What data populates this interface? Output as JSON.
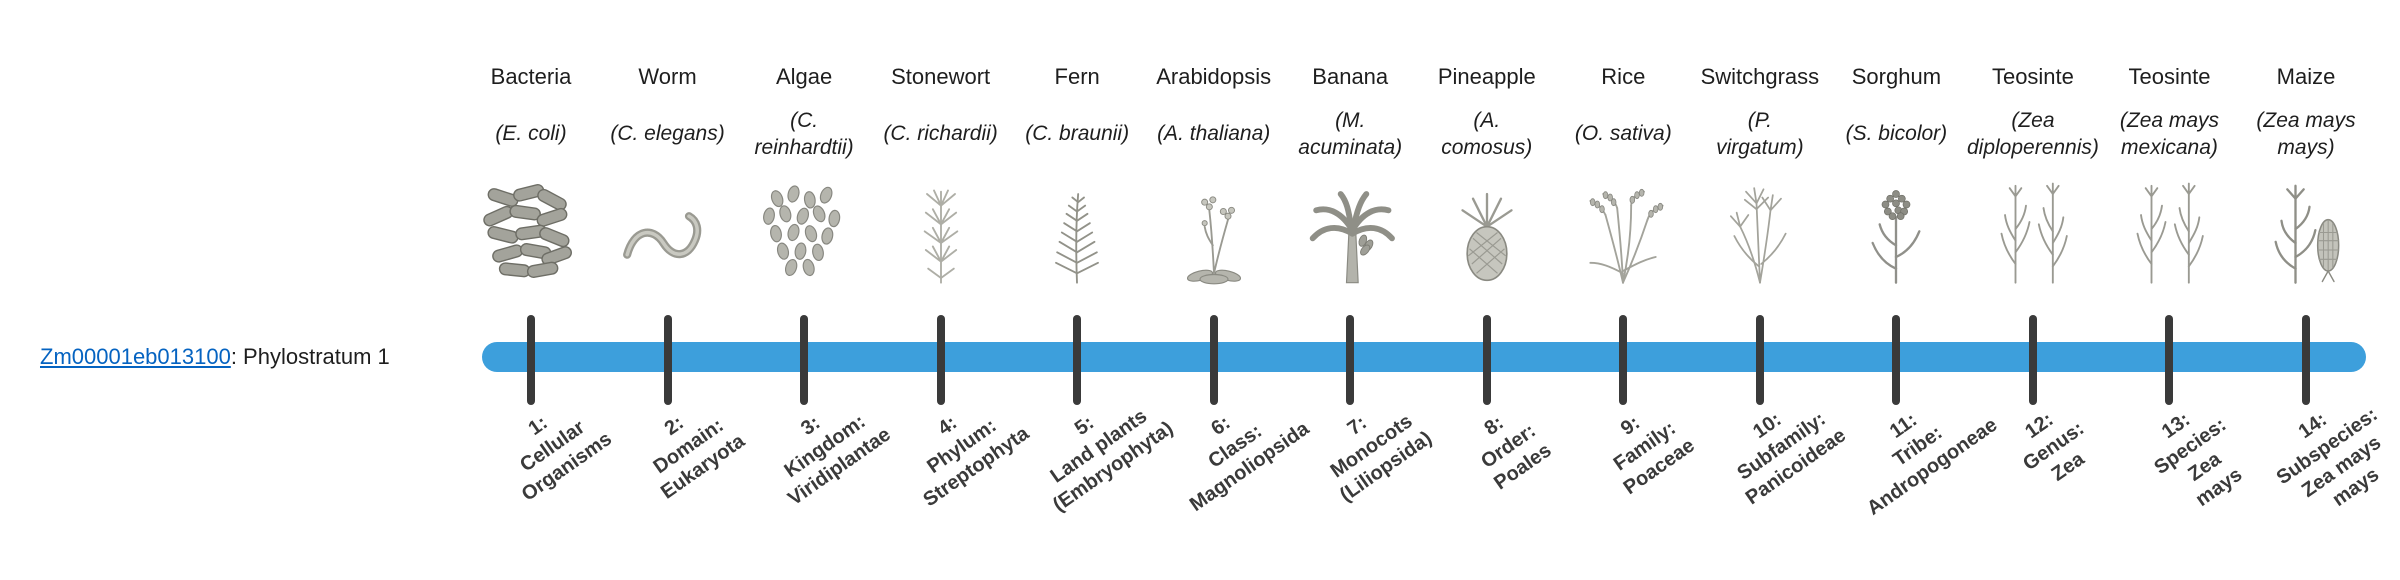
{
  "gene": {
    "id": "Zm00001eb013100",
    "suffix": ": Phylostratum 1"
  },
  "colors": {
    "bar": "#3D9FDC",
    "tick": "#3a3a3a",
    "link": "#0563C1"
  },
  "columns": [
    {
      "common": "Bacteria",
      "sci": "(E. coli)",
      "icon": "bacteria-icon",
      "stratum": "1:\nCellular\nOrganisms"
    },
    {
      "common": "Worm",
      "sci": "(C. elegans)",
      "icon": "worm-icon",
      "stratum": "2:\nDomain:\nEukaryota"
    },
    {
      "common": "Algae",
      "sci": "(C.\nreinhardtii)",
      "icon": "algae-icon",
      "stratum": "3:\nKingdom:\nViridiplantae"
    },
    {
      "common": "Stonewort",
      "sci": "(C. richardii)",
      "icon": "stonewort-icon",
      "stratum": "4:\nPhylum:\nStreptophyta"
    },
    {
      "common": "Fern",
      "sci": "(C. braunii)",
      "icon": "fern-icon",
      "stratum": "5:\nLand plants\n(Embryophyta)"
    },
    {
      "common": "Arabidopsis",
      "sci": "(A. thaliana)",
      "icon": "arabidopsis-icon",
      "stratum": "6:\nClass:\nMagnoliopsida"
    },
    {
      "common": "Banana",
      "sci": "(M.\nacuminata)",
      "icon": "banana-icon",
      "stratum": "7:\nMonocots\n(Liliopsida)"
    },
    {
      "common": "Pineapple",
      "sci": "(A.\ncomosus)",
      "icon": "pineapple-icon",
      "stratum": "8:\nOrder:\nPoales"
    },
    {
      "common": "Rice",
      "sci": "(O. sativa)",
      "icon": "rice-icon",
      "stratum": "9:\nFamily:\nPoaceae"
    },
    {
      "common": "Switchgrass",
      "sci": "(P.\nvirgatum)",
      "icon": "switchgrass-icon",
      "stratum": "10:\nSubfamily:\nPanicoideae"
    },
    {
      "common": "Sorghum",
      "sci": "(S. bicolor)",
      "icon": "sorghum-icon",
      "stratum": "11:\nTribe:\nAndropogoneae"
    },
    {
      "common": "Teosinte",
      "sci": "(Zea\ndiploperennis)",
      "icon": "teosinte-icon",
      "stratum": "12:\nGenus:\nZea"
    },
    {
      "common": "Teosinte",
      "sci": "(Zea mays\nmexicana)",
      "icon": "teosinte-icon",
      "stratum": "13:\nSpecies:\nZea\nmays"
    },
    {
      "common": "Maize",
      "sci": "(Zea mays\nmays)",
      "icon": "maize-icon",
      "stratum": "14:\nSubspecies:\nZea mays\nmays"
    }
  ]
}
